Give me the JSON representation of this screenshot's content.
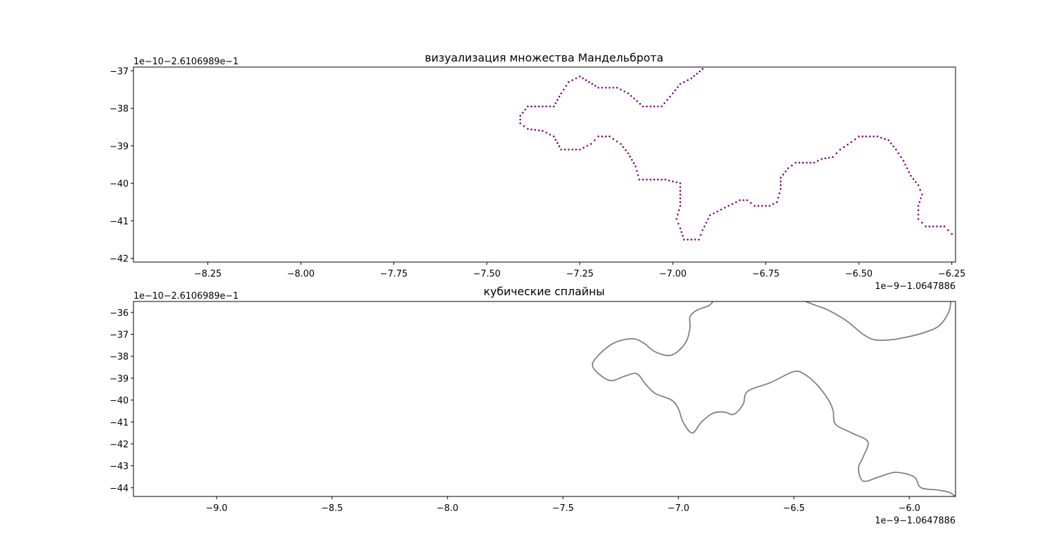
{
  "chart_data": [
    {
      "type": "scatter",
      "title": "визуализация множества Мандельброта",
      "xlabel": "",
      "ylabel": "",
      "x_offset_label": "1e−9−1.0647886",
      "y_offset_label": "1e−10−2.6106989e−1",
      "xlim": [
        -8.45,
        -6.24
      ],
      "ylim": [
        -42.1,
        -36.9
      ],
      "xticks": [
        -8.25,
        -8.0,
        -7.75,
        -7.5,
        -7.25,
        -7.0,
        -6.75,
        -6.5,
        -6.25
      ],
      "xtick_labels": [
        "−8.25",
        "−8.00",
        "−7.75",
        "−7.50",
        "−7.25",
        "−7.00",
        "−6.75",
        "−6.50",
        "−6.25"
      ],
      "yticks": [
        -42,
        -41,
        -40,
        -39,
        -38,
        -37
      ],
      "ytick_labels": [
        "−42",
        "−41",
        "−40",
        "−39",
        "−38",
        "−37"
      ],
      "grid": false,
      "series": [
        {
          "color": "#800080",
          "marker": "dot",
          "points": [
            [
              -6.92,
              -36.95
            ],
            [
              -6.95,
              -37.2
            ],
            [
              -6.98,
              -37.35
            ],
            [
              -7.0,
              -37.6
            ],
            [
              -7.03,
              -37.95
            ],
            [
              -7.08,
              -37.95
            ],
            [
              -7.12,
              -37.6
            ],
            [
              -7.15,
              -37.45
            ],
            [
              -7.2,
              -37.45
            ],
            [
              -7.25,
              -37.15
            ],
            [
              -7.28,
              -37.3
            ],
            [
              -7.3,
              -37.6
            ],
            [
              -7.32,
              -37.95
            ],
            [
              -7.39,
              -37.95
            ],
            [
              -7.41,
              -38.2
            ],
            [
              -7.41,
              -38.4
            ],
            [
              -7.39,
              -38.55
            ],
            [
              -7.35,
              -38.6
            ],
            [
              -7.32,
              -38.75
            ],
            [
              -7.3,
              -39.1
            ],
            [
              -7.25,
              -39.1
            ],
            [
              -7.22,
              -38.95
            ],
            [
              -7.2,
              -38.75
            ],
            [
              -7.17,
              -38.75
            ],
            [
              -7.14,
              -38.95
            ],
            [
              -7.12,
              -39.2
            ],
            [
              -7.1,
              -39.55
            ],
            [
              -7.09,
              -39.9
            ],
            [
              -7.02,
              -39.9
            ],
            [
              -6.98,
              -40.0
            ],
            [
              -6.98,
              -40.6
            ],
            [
              -6.99,
              -40.95
            ],
            [
              -6.98,
              -41.2
            ],
            [
              -6.97,
              -41.5
            ],
            [
              -6.93,
              -41.5
            ],
            [
              -6.92,
              -41.25
            ],
            [
              -6.9,
              -40.85
            ],
            [
              -6.88,
              -40.75
            ],
            [
              -6.85,
              -40.6
            ],
            [
              -6.82,
              -40.45
            ],
            [
              -6.8,
              -40.45
            ],
            [
              -6.78,
              -40.6
            ],
            [
              -6.74,
              -40.6
            ],
            [
              -6.72,
              -40.5
            ],
            [
              -6.71,
              -40.15
            ],
            [
              -6.71,
              -39.85
            ],
            [
              -6.69,
              -39.6
            ],
            [
              -6.67,
              -39.45
            ],
            [
              -6.62,
              -39.45
            ],
            [
              -6.6,
              -39.35
            ],
            [
              -6.57,
              -39.3
            ],
            [
              -6.55,
              -39.1
            ],
            [
              -6.52,
              -38.9
            ],
            [
              -6.5,
              -38.75
            ],
            [
              -6.45,
              -38.75
            ],
            [
              -6.42,
              -38.85
            ],
            [
              -6.4,
              -39.1
            ],
            [
              -6.38,
              -39.4
            ],
            [
              -6.36,
              -39.8
            ],
            [
              -6.34,
              -40.05
            ],
            [
              -6.33,
              -40.3
            ],
            [
              -6.34,
              -40.6
            ],
            [
              -6.34,
              -40.95
            ],
            [
              -6.32,
              -41.15
            ],
            [
              -6.27,
              -41.15
            ],
            [
              -6.25,
              -41.35
            ]
          ]
        }
      ]
    },
    {
      "type": "line",
      "title": "кубические сплайны",
      "xlabel": "",
      "ylabel": "",
      "x_offset_label": "1e−9−1.0647886",
      "y_offset_label": "1e−10−2.6106989e−1",
      "xlim": [
        -9.36,
        -5.8
      ],
      "ylim": [
        -44.4,
        -35.5
      ],
      "xticks": [
        -9.0,
        -8.5,
        -8.0,
        -7.5,
        -7.0,
        -6.5,
        -6.0
      ],
      "xtick_labels": [
        "−9.0",
        "−8.5",
        "−8.0",
        "−7.5",
        "−7.0",
        "−6.5",
        "−6.0"
      ],
      "yticks": [
        -44,
        -43,
        -42,
        -41,
        -40,
        -39,
        -38,
        -37,
        -36
      ],
      "ytick_labels": [
        "−44",
        "−43",
        "−42",
        "−41",
        "−40",
        "−39",
        "−38",
        "−37",
        "−36"
      ],
      "grid": false,
      "series": [
        {
          "color": "#808080",
          "points": [
            [
              -6.85,
              -35.5
            ],
            [
              -6.87,
              -35.7
            ],
            [
              -6.92,
              -35.9
            ],
            [
              -6.95,
              -36.2
            ],
            [
              -6.95,
              -36.7
            ],
            [
              -6.97,
              -37.4
            ],
            [
              -7.03,
              -37.95
            ],
            [
              -7.1,
              -37.8
            ],
            [
              -7.15,
              -37.4
            ],
            [
              -7.2,
              -37.2
            ],
            [
              -7.28,
              -37.4
            ],
            [
              -7.35,
              -38.0
            ],
            [
              -7.37,
              -38.5
            ],
            [
              -7.3,
              -39.1
            ],
            [
              -7.23,
              -38.9
            ],
            [
              -7.18,
              -38.8
            ],
            [
              -7.14,
              -39.3
            ],
            [
              -7.1,
              -39.7
            ],
            [
              -7.03,
              -40.0
            ],
            [
              -7.0,
              -40.4
            ],
            [
              -6.98,
              -41.0
            ],
            [
              -6.94,
              -41.5
            ],
            [
              -6.9,
              -41.0
            ],
            [
              -6.85,
              -40.6
            ],
            [
              -6.8,
              -40.55
            ],
            [
              -6.76,
              -40.65
            ],
            [
              -6.72,
              -40.2
            ],
            [
              -6.7,
              -39.6
            ],
            [
              -6.6,
              -39.2
            ],
            [
              -6.5,
              -38.7
            ],
            [
              -6.45,
              -38.85
            ],
            [
              -6.4,
              -39.3
            ],
            [
              -6.35,
              -40.0
            ],
            [
              -6.33,
              -40.5
            ],
            [
              -6.32,
              -41.1
            ],
            [
              -6.25,
              -41.5
            ],
            [
              -6.18,
              -41.9
            ],
            [
              -6.2,
              -42.6
            ],
            [
              -6.22,
              -43.1
            ],
            [
              -6.2,
              -43.7
            ],
            [
              -6.13,
              -43.5
            ],
            [
              -6.06,
              -43.3
            ],
            [
              -5.98,
              -43.5
            ],
            [
              -5.95,
              -44.0
            ],
            [
              -5.88,
              -44.1
            ],
            [
              -5.83,
              -44.2
            ],
            [
              -5.8,
              -44.4
            ]
          ]
        },
        {
          "color": "#808080",
          "points": [
            [
              -6.45,
              -35.5
            ],
            [
              -6.4,
              -35.7
            ],
            [
              -6.35,
              -35.9
            ],
            [
              -6.27,
              -36.4
            ],
            [
              -6.2,
              -37.0
            ],
            [
              -6.15,
              -37.25
            ],
            [
              -6.08,
              -37.25
            ],
            [
              -6.0,
              -37.1
            ],
            [
              -5.93,
              -36.9
            ],
            [
              -5.87,
              -36.6
            ],
            [
              -5.83,
              -36.0
            ],
            [
              -5.82,
              -35.5
            ]
          ]
        }
      ]
    }
  ]
}
